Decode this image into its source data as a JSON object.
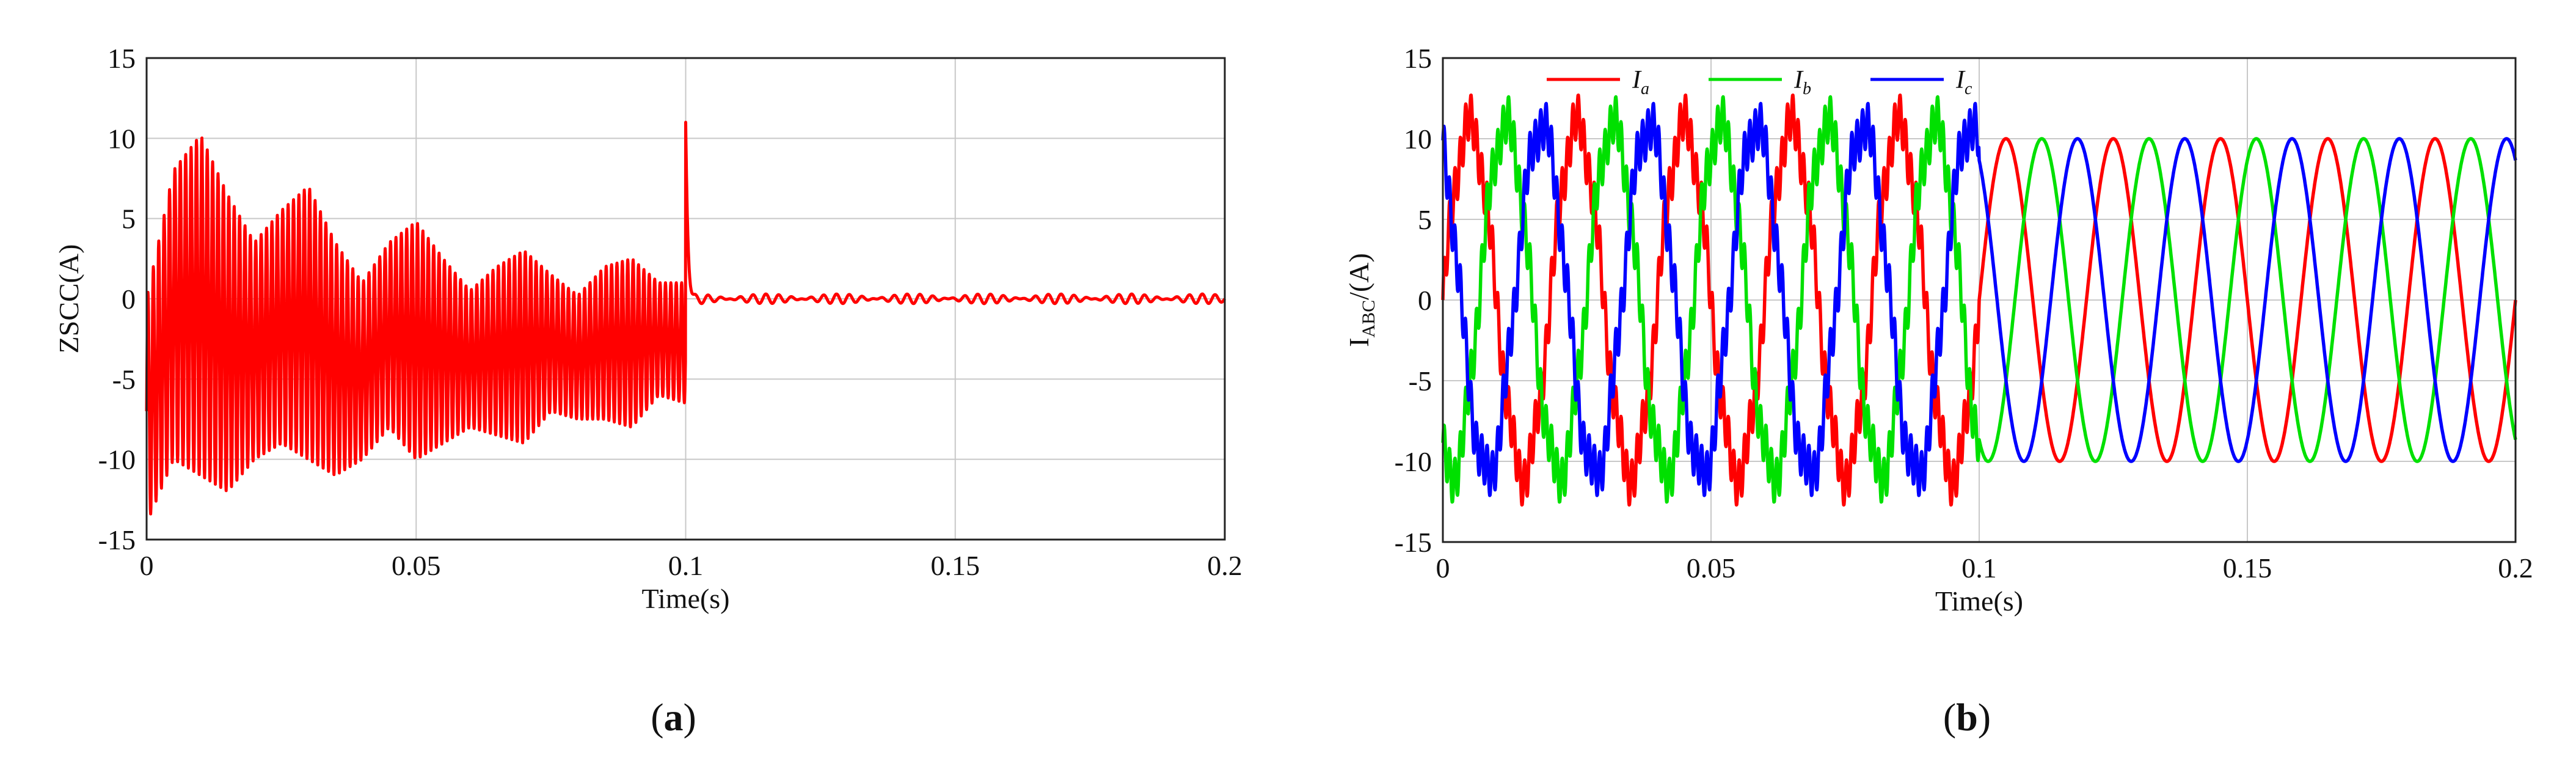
{
  "chart_data": [
    {
      "type": "line",
      "panel_label": "a",
      "xlabel": "Time(s)",
      "ylabel": "ZSCC(A)",
      "xlim": [
        0,
        0.2
      ],
      "ylim": [
        -15,
        15
      ],
      "xticks": [
        0,
        0.05,
        0.1,
        0.15,
        0.2
      ],
      "xtick_labels": [
        "0",
        "0.05",
        "0.1",
        "0.15",
        "0.2"
      ],
      "yticks": [
        15,
        10,
        5,
        0,
        -5,
        -10,
        -15
      ],
      "ytick_labels": [
        "15",
        "10",
        "5",
        "0",
        "-5",
        "-10",
        "-15"
      ],
      "grid": true,
      "series": [
        {
          "color": "#ff0000",
          "description": "Zero-sequence circulating current: oscillating envelope (~±10 A) before 0.1 s, spike to ~11 A at 0.1 s, then ~0 A",
          "envelope_x": [
            0,
            0.005,
            0.01,
            0.015,
            0.02,
            0.025,
            0.03,
            0.035,
            0.04,
            0.045,
            0.05,
            0.055,
            0.06,
            0.065,
            0.07,
            0.075,
            0.08,
            0.085,
            0.09,
            0.095,
            0.1
          ],
          "envelope_upper": [
            0,
            8,
            10.2,
            6.5,
            3.5,
            5.5,
            7,
            3.5,
            1,
            3.5,
            4.8,
            2.5,
            0.5,
            2,
            3,
            1.5,
            0.2,
            2,
            2.5,
            1,
            1
          ],
          "envelope_lower": [
            -14,
            -10,
            -11,
            -12,
            -10,
            -9,
            -10,
            -11,
            -10,
            -8,
            -10,
            -9,
            -8,
            -8.5,
            -9,
            -7,
            -7.5,
            -7.5,
            -8,
            -6,
            -6.5
          ],
          "spike": {
            "x": 0.1,
            "y": 11
          }
        }
      ]
    },
    {
      "type": "line",
      "panel_label": "b",
      "xlabel": "Time(s)",
      "ylabel_main": "I",
      "ylabel_sub": "ABC",
      "ylabel_suffix": "/(A)",
      "xlim": [
        0,
        0.2
      ],
      "ylim": [
        -15,
        15
      ],
      "xticks": [
        0,
        0.05,
        0.1,
        0.15,
        0.2
      ],
      "xtick_labels": [
        "0",
        "0.05",
        "0.1",
        "0.15",
        "0.2"
      ],
      "yticks": [
        15,
        10,
        5,
        0,
        -5,
        -10,
        -15
      ],
      "ytick_labels": [
        "15",
        "10",
        "5",
        "0",
        "-5",
        "-10",
        "-15"
      ],
      "grid": true,
      "legend_position": "top-left",
      "amplitude": 10,
      "frequency_hz": 50,
      "distorted_until": 0.1,
      "series": [
        {
          "name": "I",
          "sub": "a",
          "color": "#ff0000",
          "phase_deg": 0
        },
        {
          "name": "I",
          "sub": "b",
          "color": "#00e000",
          "phase_deg": -120
        },
        {
          "name": "I",
          "sub": "c",
          "color": "#0000ff",
          "phase_deg": 120
        }
      ]
    }
  ]
}
